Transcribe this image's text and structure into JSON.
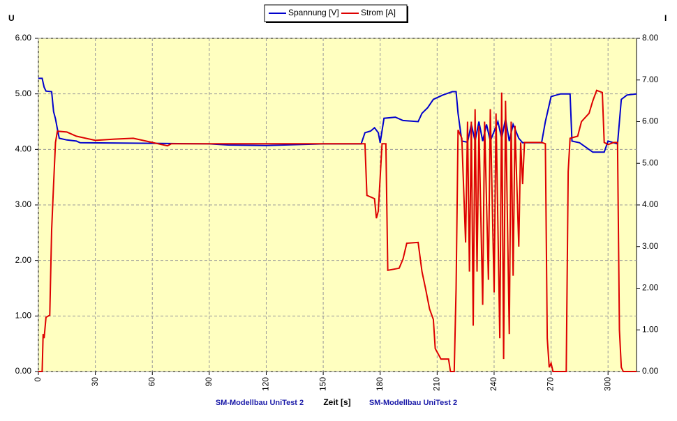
{
  "chart_data": {
    "type": "line",
    "y_axis_label": "U",
    "y2_axis_label": "I",
    "x_axis_label": "Zeit [s]",
    "footer_left": "SM-Modellbau UniTest 2",
    "footer_right": "SM-Modellbau UniTest 2",
    "xlim": [
      0,
      315
    ],
    "xticks": [
      0,
      30,
      60,
      90,
      120,
      150,
      180,
      210,
      240,
      270,
      300
    ],
    "ylim": [
      0,
      6
    ],
    "yticks": [
      {
        "value": 0,
        "label": "0.00"
      },
      {
        "value": 1,
        "label": "1.00"
      },
      {
        "value": 2,
        "label": "2.00"
      },
      {
        "value": 3,
        "label": "3.00"
      },
      {
        "value": 4,
        "label": "4.00"
      },
      {
        "value": 5,
        "label": "5.00"
      },
      {
        "value": 6,
        "label": "6.00"
      }
    ],
    "y2lim": [
      0,
      8
    ],
    "y2ticks": [
      {
        "value": 0,
        "label": "0.00"
      },
      {
        "value": 1,
        "label": "1.00"
      },
      {
        "value": 2,
        "label": "2.00"
      },
      {
        "value": 3,
        "label": "3.00"
      },
      {
        "value": 4,
        "label": "4.00"
      },
      {
        "value": 5,
        "label": "5.00"
      },
      {
        "value": 6,
        "label": "6.00"
      },
      {
        "value": 7,
        "label": "7.00"
      },
      {
        "value": 8,
        "label": "8.00"
      }
    ],
    "grid": true,
    "series": [
      {
        "name": "Spannung [V]",
        "color": "#0000cc",
        "axis": "y",
        "x": [
          0,
          2,
          3,
          4,
          7,
          8,
          9,
          10,
          11,
          15,
          20,
          22,
          60,
          90,
          100,
          120,
          150,
          170,
          172,
          175,
          177,
          179,
          180,
          182,
          188,
          192,
          200,
          202,
          205,
          208,
          213,
          218,
          220,
          221,
          223,
          226,
          228,
          230,
          232,
          234,
          236,
          238,
          242,
          244,
          246,
          248,
          250,
          253,
          255,
          265,
          267,
          270,
          275,
          280,
          281,
          285,
          292,
          298,
          300,
          305,
          307,
          310,
          315
        ],
        "values": [
          5.28,
          5.28,
          5.12,
          5.05,
          5.04,
          4.68,
          4.55,
          4.37,
          4.2,
          4.17,
          4.15,
          4.12,
          4.11,
          4.1,
          4.08,
          4.07,
          4.1,
          4.1,
          4.3,
          4.33,
          4.39,
          4.3,
          4.12,
          4.56,
          4.58,
          4.52,
          4.5,
          4.65,
          4.75,
          4.9,
          4.98,
          5.04,
          5.04,
          4.65,
          4.15,
          4.13,
          4.45,
          4.15,
          4.5,
          4.15,
          4.45,
          4.15,
          4.5,
          4.2,
          4.55,
          4.15,
          4.45,
          4.2,
          4.12,
          4.12,
          4.5,
          4.95,
          5.0,
          5.0,
          4.15,
          4.12,
          3.95,
          3.95,
          4.15,
          4.1,
          4.9,
          4.98,
          5.0
        ]
      },
      {
        "name": "Strom [A]",
        "color": "#dd0000",
        "axis": "y2",
        "x": [
          0,
          2,
          2.5,
          3,
          4,
          6,
          7,
          8,
          9,
          10,
          15,
          20,
          30,
          40,
          50,
          60,
          68,
          70,
          90,
          120,
          150,
          172,
          173,
          177,
          178,
          179,
          181,
          183,
          184,
          190,
          192,
          194,
          200,
          202,
          204,
          206,
          208,
          209,
          212,
          216,
          217,
          219,
          220,
          221,
          223,
          225,
          226,
          227,
          228,
          229,
          230,
          231,
          232,
          234,
          235,
          237,
          238,
          240,
          241,
          243,
          244,
          245,
          246,
          248,
          249,
          250,
          251,
          253,
          254,
          255,
          256,
          265,
          267,
          268,
          269,
          270,
          271,
          278,
          279,
          280,
          284,
          286,
          290,
          292,
          294,
          297,
          298,
          300,
          303,
          305,
          306,
          307,
          308,
          315
        ],
        "values": [
          0,
          0,
          0.9,
          0.8,
          1.3,
          1.35,
          3.4,
          4.5,
          5.5,
          5.77,
          5.75,
          5.65,
          5.55,
          5.58,
          5.6,
          5.5,
          5.42,
          5.47,
          5.47,
          5.47,
          5.47,
          5.47,
          4.23,
          4.15,
          3.68,
          3.85,
          5.47,
          5.47,
          2.43,
          2.48,
          2.7,
          3.08,
          3.1,
          2.4,
          1.97,
          1.5,
          1.25,
          0.55,
          0.3,
          0.3,
          0,
          0,
          2.0,
          5.8,
          5.6,
          3.1,
          6.0,
          2.4,
          6.0,
          1.1,
          6.3,
          2.4,
          5.9,
          1.6,
          6.0,
          2.2,
          6.3,
          1.9,
          6.2,
          0.8,
          6.7,
          0.3,
          6.5,
          0.9,
          6.0,
          2.3,
          5.9,
          3.0,
          5.5,
          4.5,
          5.5,
          5.5,
          5.47,
          0.8,
          0.1,
          0.2,
          0,
          0,
          4.8,
          5.6,
          5.65,
          6.0,
          6.2,
          6.5,
          6.75,
          6.7,
          5.5,
          5.45,
          5.5,
          5.5,
          1.0,
          0.1,
          0,
          0
        ]
      }
    ]
  }
}
